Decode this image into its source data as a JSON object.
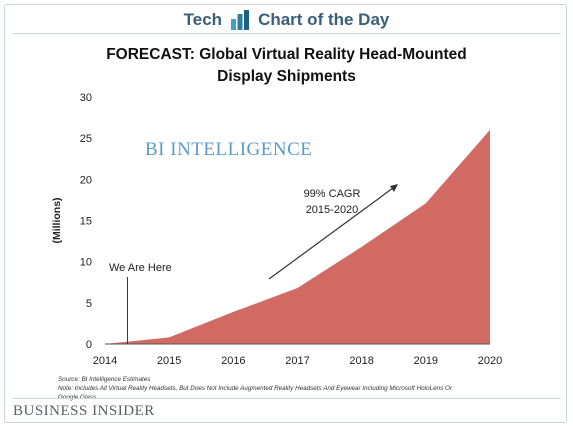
{
  "banner": {
    "left": "Tech",
    "right": "Chart of the Day"
  },
  "chart_data": {
    "type": "area",
    "title": "FORECAST: Global Virtual Reality Head-Mounted Display Shipments",
    "title_lines": [
      "FORECAST: Global Virtual Reality Head-Mounted",
      "Display Shipments"
    ],
    "xlabel": "",
    "ylabel": "(Millions)",
    "x": [
      2014,
      2015,
      2016,
      2017,
      2018,
      2019,
      2020
    ],
    "values": [
      0.0,
      0.8,
      3.9,
      6.8,
      11.8,
      17.1,
      26.0
    ],
    "ylim": [
      0,
      30
    ],
    "yticks": [
      0,
      5,
      10,
      15,
      20,
      25,
      30
    ],
    "xticks": [
      "2014",
      "2015",
      "2016",
      "2017",
      "2018",
      "2019",
      "2020"
    ],
    "grid": false,
    "fill_color": "#d26a64",
    "watermark": "BI INTELLIGENCE",
    "annotations": {
      "we_are_here": "We Are Here",
      "cagr_line1": "99% CAGR",
      "cagr_line2": "2015-2020"
    }
  },
  "footer": {
    "source": "Source: BI Intelligence Estimates",
    "note": "Note: Includes All Virtual Reality Headsets, But Does Not Include Augmented Reality Headsets And Eyewear Including Microsoft HoloLens Or Google Glass",
    "brand": "BUSINESS INSIDER"
  }
}
